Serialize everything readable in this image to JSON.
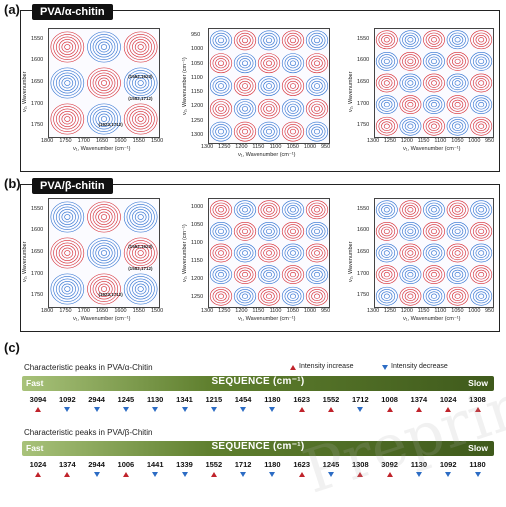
{
  "panel_a": {
    "letter": "(a)",
    "tag": "PVA/α-chitin"
  },
  "panel_b": {
    "letter": "(b)",
    "tag": "PVA/β-chitin"
  },
  "panel_c": {
    "letter": "(c)"
  },
  "plots": {
    "p1": {
      "xticks": [
        "1800",
        "1750",
        "1700",
        "1650",
        "1600",
        "1550",
        "1500"
      ],
      "yticks": [
        "1550",
        "1600",
        "1650",
        "1700",
        "1750"
      ],
      "xlabel": "ν₁, Wavenumber (cm⁻¹)",
      "ylabel": "ν₂, Wavenumber",
      "labels": [
        "(1552,1623)",
        "(1552,1712)",
        "(1623,1712)"
      ]
    },
    "p2": {
      "xticks": [
        "1300",
        "1250",
        "1200",
        "1150",
        "1100",
        "1050",
        "1000",
        "950"
      ],
      "yticks": [
        "950",
        "1000",
        "1050",
        "1100",
        "1150",
        "1200",
        "1250",
        "1300"
      ],
      "xlabel": "ν₁, Wavenumber (cm⁻¹)",
      "ylabel": "ν₂, Wavenumber (cm⁻¹)"
    },
    "p3": {
      "xticks": [
        "1300",
        "1250",
        "1200",
        "1150",
        "1100",
        "1050",
        "1000",
        "950"
      ],
      "yticks": [
        "1550",
        "1600",
        "1650",
        "1700",
        "1750"
      ],
      "xlabel": "ν₁, Wavenumber (cm⁻¹)",
      "ylabel": "ν₂, Wavenumber"
    },
    "p4": {
      "xticks": [
        "1800",
        "1750",
        "1700",
        "1650",
        "1600",
        "1550",
        "1500"
      ],
      "yticks": [
        "1550",
        "1600",
        "1650",
        "1700",
        "1750"
      ],
      "xlabel": "ν₁, Wavenumber (cm⁻¹)",
      "ylabel": "ν₂, Wavenumber",
      "labels": [
        "(1552,1623)",
        "(1552,1712)",
        "(1623,1712)"
      ]
    },
    "p5": {
      "xticks": [
        "1300",
        "1250",
        "1200",
        "1150",
        "1100",
        "1050",
        "1000",
        "950"
      ],
      "yticks": [
        "1000",
        "1050",
        "1100",
        "1150",
        "1200",
        "1250"
      ],
      "xlabel": "ν₁, Wavenumber (cm⁻¹)",
      "ylabel": "ν₂, Wavenumber (cm⁻¹)"
    },
    "p6": {
      "xticks": [
        "1300",
        "1250",
        "1200",
        "1150",
        "1100",
        "1050",
        "1000",
        "950"
      ],
      "yticks": [
        "1550",
        "1600",
        "1650",
        "1700",
        "1750"
      ],
      "xlabel": "ν₁, Wavenumber (cm⁻¹)",
      "ylabel": "ν₂, Wavenumber"
    }
  },
  "legend": {
    "increase": "Intensity increase",
    "decrease": "Intensity decrease"
  },
  "seq1": {
    "title": "Characteristic peaks in PVA/α-Chitin",
    "fast": "Fast",
    "slow": "Slow",
    "sequence": "SEQUENCE (cm⁻¹)",
    "values": [
      "3094",
      "1092",
      "2944",
      "1245",
      "1130",
      "1341",
      "1215",
      "1454",
      "1180",
      "1623",
      "1552",
      "1712",
      "1008",
      "1374",
      "1024",
      "1308"
    ],
    "dir": [
      "up",
      "down",
      "down",
      "down",
      "down",
      "down",
      "down",
      "down",
      "down",
      "up",
      "up",
      "down",
      "up",
      "up",
      "up",
      "up"
    ]
  },
  "seq2": {
    "title": "Characteristic peaks in PVA/β-Chitin",
    "fast": "Fast",
    "slow": "Slow",
    "sequence": "SEQUENCE (cm⁻¹)",
    "values": [
      "1024",
      "1374",
      "2944",
      "1006",
      "1441",
      "1339",
      "1552",
      "1712",
      "1180",
      "1623",
      "1245",
      "1308",
      "3092",
      "1130",
      "1092",
      "1180"
    ],
    "dir": [
      "up",
      "up",
      "down",
      "up",
      "down",
      "down",
      "up",
      "down",
      "down",
      "up",
      "down",
      "up",
      "up",
      "down",
      "down",
      "down"
    ]
  },
  "colors": {
    "positive": "#d6262e",
    "negative": "#2b6fd0",
    "bar_dark": "#3f5a1c"
  }
}
